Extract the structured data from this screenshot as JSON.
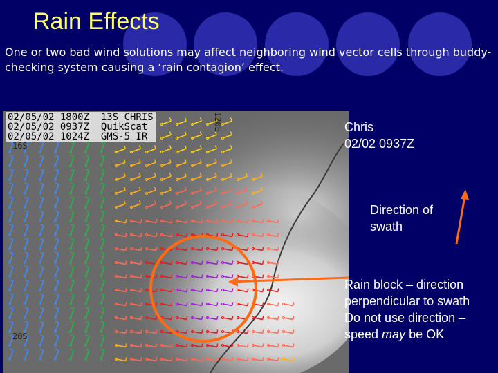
{
  "slide": {
    "title": "Rain Effects",
    "subtitle": "One or two bad wind solutions may affect neighboring wind vector cells through buddy-checking system causing  a ‘rain contagion’ effect."
  },
  "image": {
    "header_lines": "02/05/02 1800Z  13S CHRIS\n02/05/02 0937Z  QuikScat\n02/05/02 1024Z  GMS-5 IR",
    "lat_top": "16S",
    "lat_bottom": "20S",
    "lon_label": "120E"
  },
  "annotations": {
    "storm_line1": "Chris",
    "storm_line2": "02/02 0937Z",
    "direction_line1": "Direction of",
    "direction_line2": "swath",
    "rain_line1": "Rain block – direction",
    "rain_line2": "perpendicular to swath",
    "rain_line3": "Do not use direction –",
    "rain_speed": "speed ",
    "rain_may": "may",
    "rain_ok": " be OK"
  },
  "colors": {
    "background": "#000066",
    "title": "#ffff66",
    "arrow": "#ff6a13"
  }
}
